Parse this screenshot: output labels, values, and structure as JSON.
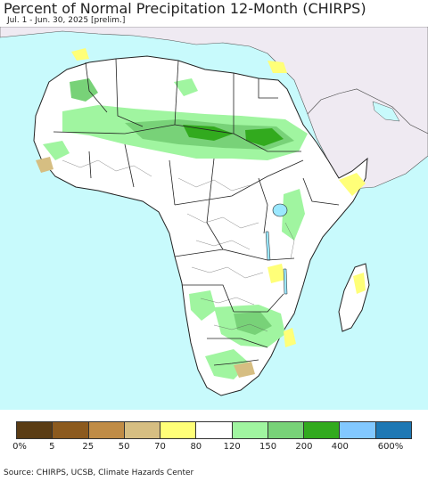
{
  "header": {
    "title": "Percent of Normal Precipitation 12-Month (CHIRPS)",
    "subtitle": "Jul. 1 - Jun. 30, 2025 [prelim.]"
  },
  "map": {
    "colors": {
      "ocean": "#c8fafc",
      "land": "#ffffff",
      "non_africa": "#efeaf2",
      "border": "#222222",
      "lake": "#9be8ff"
    }
  },
  "legend": {
    "swatches": [
      {
        "color": "#5a3c14"
      },
      {
        "color": "#8c5a1e"
      },
      {
        "color": "#c08c46"
      },
      {
        "color": "#d6be82"
      },
      {
        "color": "#ffff78"
      },
      {
        "color": "#ffffff"
      },
      {
        "color": "#a0f5a0"
      },
      {
        "color": "#78d278"
      },
      {
        "color": "#32aa1e"
      },
      {
        "color": "#82c8ff"
      },
      {
        "color": "#1e78b4"
      }
    ],
    "labels": [
      "0%",
      "5",
      "25",
      "50",
      "70",
      "80",
      "120",
      "150",
      "200",
      "400",
      "600%"
    ]
  },
  "footer": {
    "source": "Source: CHIRPS, UCSB, Climate Hazards Center"
  }
}
